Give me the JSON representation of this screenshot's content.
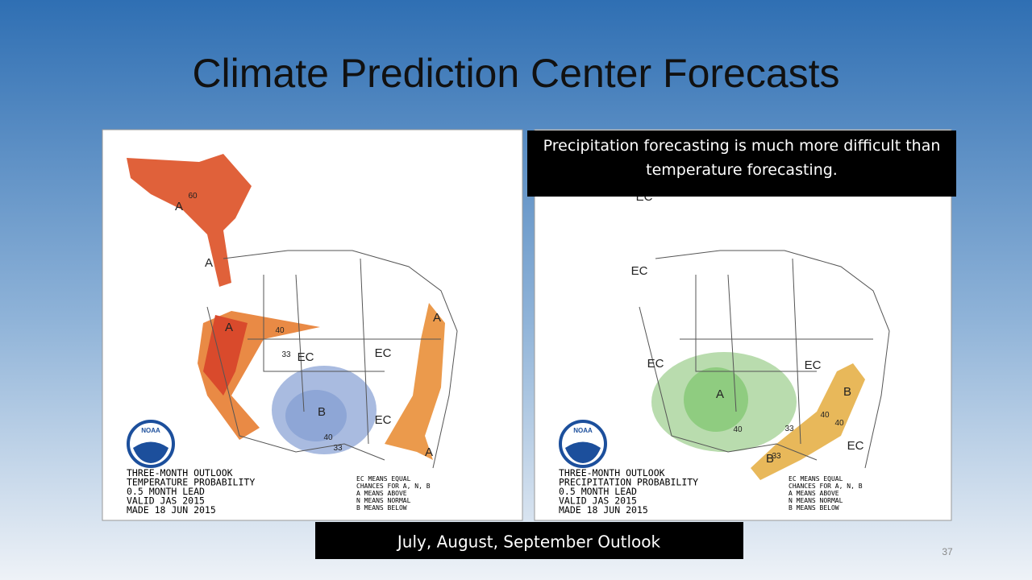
{
  "title": "Climate Prediction Center Forecasts",
  "callout": "Precipitation forecasting is much more difficult than temperature forecasting.",
  "caption": "July, August, September Outlook",
  "slide_number": "37",
  "maps": [
    {
      "logo": "NOAA",
      "info": [
        "THREE-MONTH OUTLOOK",
        "TEMPERATURE PROBABILITY",
        "0.5 MONTH LEAD",
        "VALID JAS 2015",
        "MADE 18 JUN 2015"
      ],
      "legend": [
        "EC MEANS EQUAL",
        "CHANCES FOR A, N, B",
        "A MEANS ABOVE",
        "N MEANS NORMAL",
        "B MEANS BELOW"
      ],
      "labels": [
        "60",
        "A",
        "A",
        "A",
        "40",
        "33",
        "EC",
        "EC",
        "B",
        "40",
        "33",
        "EC",
        "A",
        "A"
      ]
    },
    {
      "logo": "NOAA",
      "info": [
        "THREE-MONTH OUTLOOK",
        "PRECIPITATION PROBABILITY",
        "0.5 MONTH LEAD",
        "VALID JAS 2015",
        "MADE 18 JUN 2015"
      ],
      "legend": [
        "EC MEANS EQUAL",
        "CHANCES FOR A, N, B",
        "A MEANS ABOVE",
        "N MEANS NORMAL",
        "B MEANS BELOW"
      ],
      "labels": [
        "EC",
        "EC",
        "EC",
        "A",
        "40",
        "33",
        "EC",
        "B",
        "40",
        "40",
        "33",
        "B",
        "EC"
      ]
    }
  ]
}
